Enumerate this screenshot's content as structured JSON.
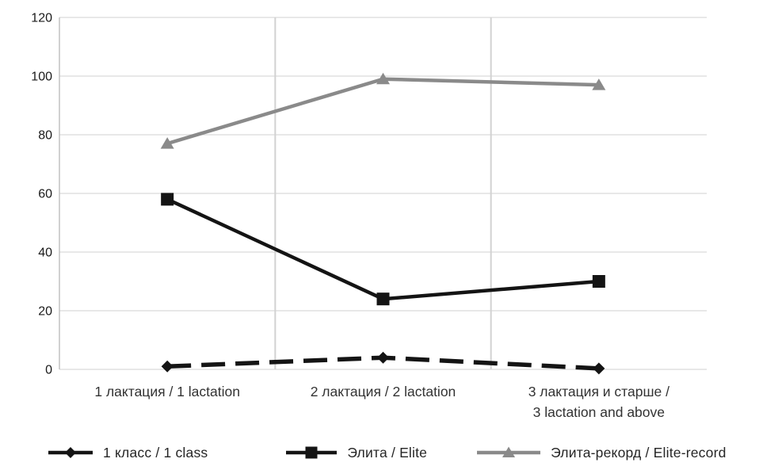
{
  "chart_data": {
    "type": "line",
    "title": "",
    "xlabel": "",
    "ylabel": "",
    "categories": [
      "1 лактация / 1 lactation",
      "2 лактация / 2 lactation",
      "3 лактация и старше /\n3 lactation and above"
    ],
    "series": [
      {
        "name": "1 класс / 1 class",
        "values": [
          1,
          4,
          0.3
        ],
        "color": "#141414",
        "marker": "diamond",
        "line_style": "dashed"
      },
      {
        "name": "Элита / Elite",
        "values": [
          58,
          24,
          30
        ],
        "color": "#141414",
        "marker": "square",
        "line_style": "solid"
      },
      {
        "name": "Элита-рекорд / Elite-record",
        "values": [
          77,
          99,
          97
        ],
        "color": "#8a8a8a",
        "marker": "triangle",
        "line_style": "solid"
      }
    ],
    "ylim": [
      0,
      120
    ],
    "yticks": [
      0,
      20,
      40,
      60,
      80,
      100,
      120
    ],
    "grid": true,
    "category_separators": true,
    "legend_position": "bottom"
  },
  "colors": {
    "background": "#ffffff",
    "gridline": "#d9d9d9",
    "separator": "#d2d2d2",
    "axis_line": "#c2c2c2",
    "tick_text": "#1a1a1a",
    "category_text": "#333333",
    "legend_text": "#262626"
  }
}
